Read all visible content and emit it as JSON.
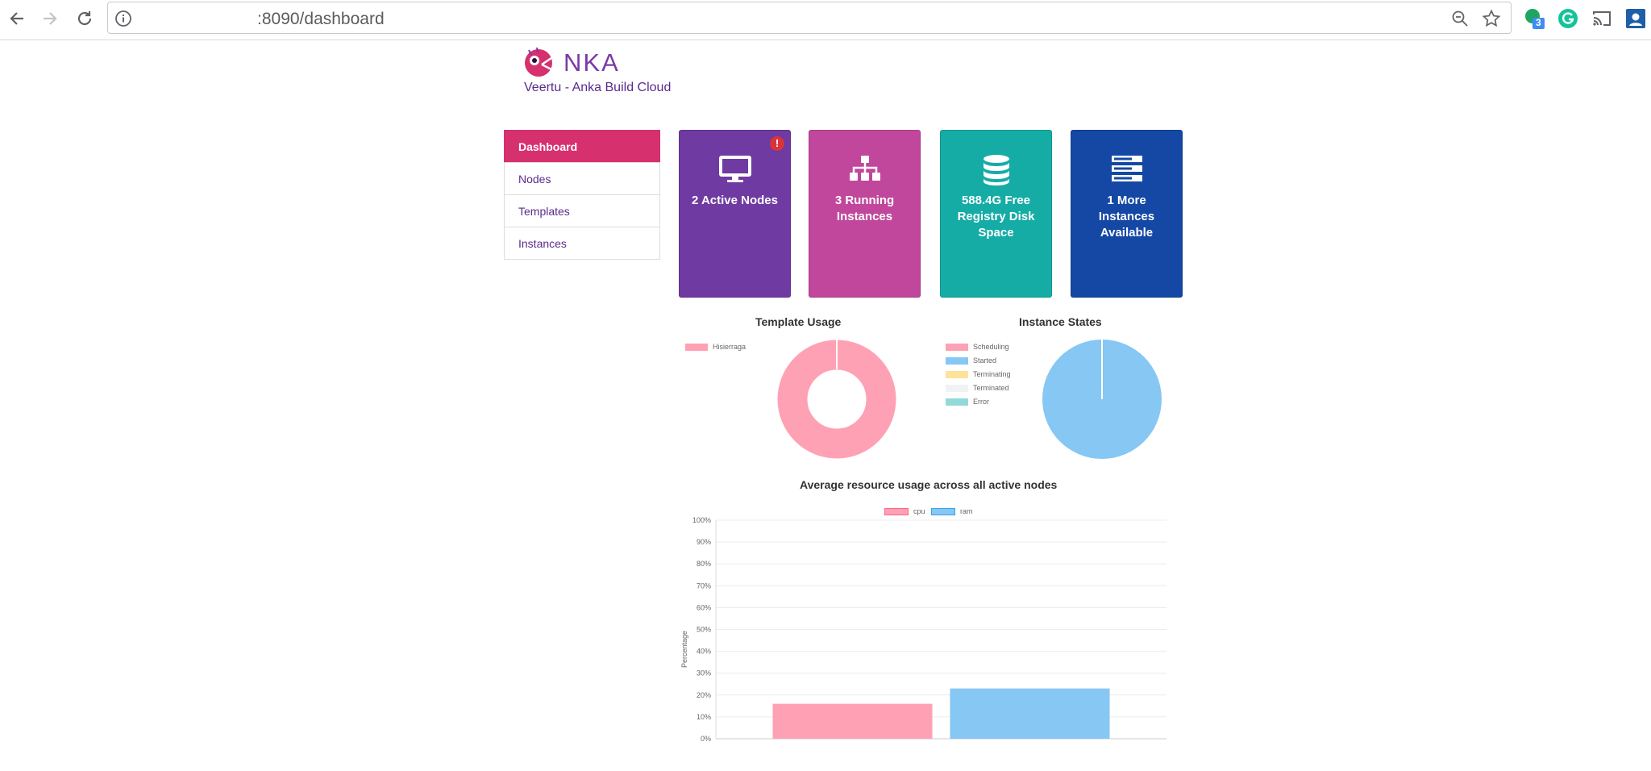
{
  "browser": {
    "url": ":8090/dashboard",
    "extension_badge": "3"
  },
  "header": {
    "logo_text": "NKA",
    "subtitle": "Veertu - Anka Build Cloud"
  },
  "sidebar": {
    "items": [
      {
        "label": "Dashboard",
        "active": true
      },
      {
        "label": "Nodes",
        "active": false
      },
      {
        "label": "Templates",
        "active": false
      },
      {
        "label": "Instances",
        "active": false
      }
    ]
  },
  "tiles": {
    "nodes": {
      "label": "2 Active Nodes",
      "icon": "monitor-icon",
      "color": "#6f3aa1",
      "badge": "!"
    },
    "running": {
      "label": "3 Running Instances",
      "icon": "sitemap-icon",
      "color": "#c0479c"
    },
    "disk": {
      "label": "588.4G Free Registry Disk Space",
      "icon": "database-icon",
      "color": "#15aca6"
    },
    "more": {
      "label": "1 More Instances Available",
      "icon": "server-icon",
      "color": "#1448a4"
    }
  },
  "template_chart": {
    "title": "Template Usage",
    "legend": [
      {
        "label": "Hisierraga",
        "color": "#ffa1b5"
      }
    ]
  },
  "states_chart": {
    "title": "Instance States",
    "legend": [
      {
        "label": "Scheduling",
        "color": "#ffa1b5"
      },
      {
        "label": "Started",
        "color": "#86c7f3"
      },
      {
        "label": "Terminating",
        "color": "#ffe29a"
      },
      {
        "label": "Terminated",
        "color": "#f1f2f4"
      },
      {
        "label": "Error",
        "color": "#93d9d9"
      }
    ]
  },
  "usage_chart": {
    "title": "Average resource usage across all active nodes",
    "ylabel": "Percentage",
    "legend": [
      {
        "label": "cpu",
        "color": "#ffa1b5"
      },
      {
        "label": "ram",
        "color": "#86c7f3"
      }
    ]
  },
  "chart_data": [
    {
      "type": "pie",
      "title": "Template Usage",
      "donut": true,
      "categories": [
        "Hisierraga"
      ],
      "values": [
        100
      ],
      "colors": [
        "#ffa1b5"
      ]
    },
    {
      "type": "pie",
      "title": "Instance States",
      "categories": [
        "Scheduling",
        "Started",
        "Terminating",
        "Terminated",
        "Error"
      ],
      "values": [
        0,
        100,
        0,
        0,
        0
      ],
      "colors": [
        "#ffa1b5",
        "#86c7f3",
        "#ffe29a",
        "#f1f2f4",
        "#93d9d9"
      ]
    },
    {
      "type": "bar",
      "title": "Average resource usage across all active nodes",
      "xlabel": "",
      "ylabel": "Percentage",
      "categories": [
        "cpu",
        "ram"
      ],
      "values": [
        16,
        23
      ],
      "colors": [
        "#ffa1b5",
        "#86c7f3"
      ],
      "ylim": [
        0,
        100
      ],
      "yticks": [
        "0%",
        "10%",
        "20%",
        "30%",
        "40%",
        "50%",
        "60%",
        "70%",
        "80%",
        "90%",
        "100%"
      ],
      "grid": true,
      "legend_position": "top"
    }
  ]
}
